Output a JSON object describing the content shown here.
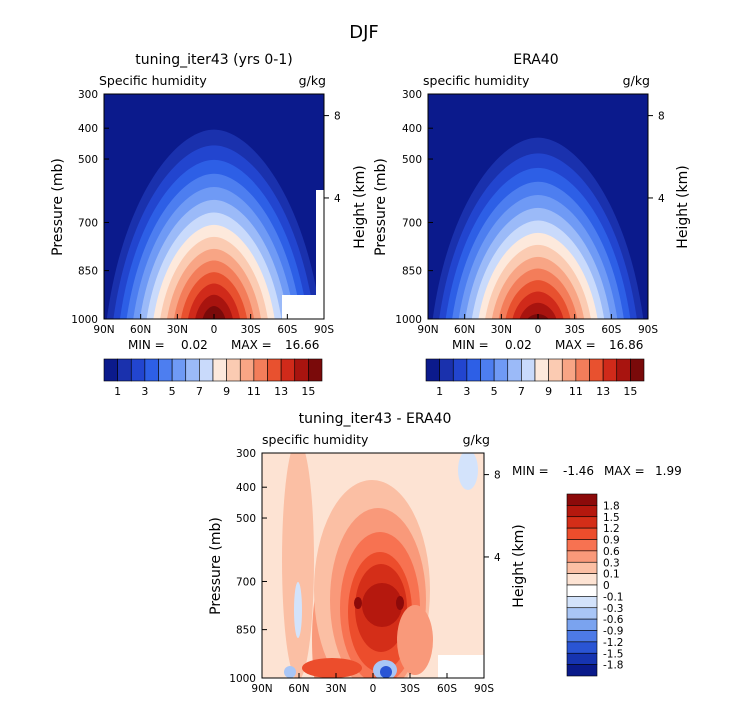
{
  "figure": {
    "title": "DJF"
  },
  "chart_data": [
    {
      "type": "heatmap",
      "title": "tuning_iter43 (yrs 0-1)",
      "subtitle_left": "Specific humidity",
      "subtitle_right": "g/kg",
      "ylabel": "Pressure (mb)",
      "y2label": "Height (km)",
      "x_ticks": [
        "90N",
        "60N",
        "30N",
        "0",
        "30S",
        "60S",
        "90S"
      ],
      "y_ticks": [
        "300",
        "400",
        "500",
        "700",
        "850",
        "1000"
      ],
      "y2_ticks": [
        "8",
        "4"
      ],
      "stats": {
        "min_label": "MIN =",
        "min": "0.02",
        "max_label": "MAX =",
        "max": "16.66"
      },
      "peak": {
        "lat": 0,
        "p": 930,
        "value": 16.66
      }
    },
    {
      "type": "heatmap",
      "title": "ERA40",
      "subtitle_left": "specific humidity",
      "subtitle_right": "g/kg",
      "ylabel": "Pressure (mb)",
      "y2label": "Height (km)",
      "x_ticks": [
        "90N",
        "60N",
        "30N",
        "0",
        "30S",
        "60S",
        "90S"
      ],
      "y_ticks": [
        "300",
        "400",
        "500",
        "700",
        "850",
        "1000"
      ],
      "y2_ticks": [
        "8",
        "4"
      ],
      "stats": {
        "min_label": "MIN =",
        "min": "0.02",
        "max_label": "MAX =",
        "max": "16.86"
      },
      "peak": {
        "lat": 0,
        "p": 940,
        "value": 16.86
      }
    },
    {
      "type": "heatmap",
      "title": "tuning_iter43 - ERA40",
      "subtitle_left": "specific humidity",
      "subtitle_right": "g/kg",
      "ylabel": "Pressure (mb)",
      "y2label": "Height (km)",
      "x_ticks": [
        "90N",
        "60N",
        "30N",
        "0",
        "30S",
        "60S",
        "90S"
      ],
      "y_ticks": [
        "300",
        "400",
        "500",
        "700",
        "850",
        "1000"
      ],
      "y2_ticks": [
        "8",
        "4"
      ],
      "stats": {
        "min_label": "MIN =",
        "min": "-1.46",
        "max_label": "MAX =",
        "max": "1.99"
      }
    }
  ],
  "colorbar_top": {
    "labels": [
      "1",
      "3",
      "5",
      "7",
      "9",
      "11",
      "13",
      "15"
    ],
    "colors": [
      "#0b1a8c",
      "#1a31ad",
      "#2245cf",
      "#2d5fe6",
      "#4d7ef0",
      "#6f9af5",
      "#9bbaf8",
      "#c9dafb",
      "#fde9dc",
      "#fbcbb2",
      "#f8a585",
      "#f37d5a",
      "#e8512f",
      "#d02a1a",
      "#a8140f",
      "#7a0a0a"
    ]
  },
  "colorbar_diff": {
    "labels": [
      "1.8",
      "1.5",
      "1.2",
      "0.9",
      "0.6",
      "0.3",
      "0.1",
      "0",
      "-0.1",
      "-0.3",
      "-0.6",
      "-0.9",
      "-1.2",
      "-1.5",
      "-1.8"
    ],
    "colors": [
      "#8c0a0a",
      "#b5180e",
      "#d42e18",
      "#ec4d2c",
      "#f77251",
      "#f9997a",
      "#fbbfa4",
      "#fde3d3",
      "#ffffff",
      "#d3e3fb",
      "#a9c6f6",
      "#7aa3ef",
      "#4d7ae6",
      "#2a55d4",
      "#1634b0",
      "#0a1a8a"
    ]
  }
}
